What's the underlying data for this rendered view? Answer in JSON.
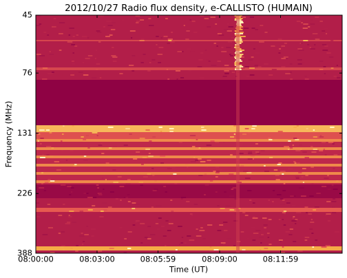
{
  "chart_data": {
    "type": "spectrogram",
    "title": "2012/10/27  Radio flux density, e-CALLISTO (HUMAIN)",
    "x_label": "Time (UT)",
    "y_label": "Frequency (MHz)",
    "xlim": [
      "08:00:00",
      "08:15:00"
    ],
    "xticks": [
      "08:00:00",
      "08:03:00",
      "08:05:59",
      "08:09:00",
      "08:11:59"
    ],
    "ylim": [
      45,
      388
    ],
    "yticks": [
      45,
      76,
      131,
      226,
      388
    ],
    "y_scale": "log",
    "y_inverted": true
  }
}
